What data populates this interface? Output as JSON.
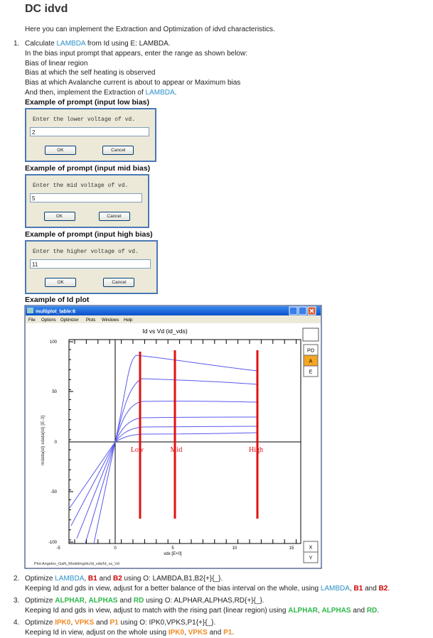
{
  "header": {
    "title": "DC idvd",
    "intro": "Here you can implement the Extraction and Optimization of idvd characteristics."
  },
  "steps": [
    {
      "number": "1.",
      "lines": [
        [
          {
            "text": "Calculate "
          },
          {
            "text": "LAMBDA",
            "color": "#2a90c8"
          },
          {
            "text": " from Id using E: LAMBDA."
          }
        ],
        [
          {
            "text": "In the bias input prompt that appears, enter the range as shown below:"
          }
        ],
        [
          {
            "text": "Bias of linear region"
          }
        ],
        [
          {
            "text": "Bias at which the self heating is observed"
          }
        ],
        [
          {
            "text": "Bias at which Avalanche current is about to appear or Maximum bias"
          }
        ],
        [
          {
            "text": "And then, implement the Extraction of "
          },
          {
            "text": "LAMBDA",
            "color": "#2a90c8"
          },
          {
            "text": "."
          }
        ]
      ]
    },
    {
      "number": "2.",
      "lines": [
        [
          {
            "text": "Optimize "
          },
          {
            "text": "LAMBDA",
            "color": "#2a90c8"
          },
          {
            "text": ", "
          },
          {
            "text": "B1",
            "color": "#cc0000",
            "bold": true
          },
          {
            "text": " and "
          },
          {
            "text": "B2",
            "color": "#cc0000",
            "bold": true
          },
          {
            "text": " using O: LAMBDA,B1,B2{+}{_}."
          }
        ],
        [
          {
            "text": "Keeping Id and gds in view, adjust for a better balance of the bias interval on the whole, using "
          },
          {
            "text": "LAMBDA",
            "color": "#2a90c8"
          },
          {
            "text": ", "
          },
          {
            "text": "B1",
            "color": "#cc0000",
            "bold": true
          },
          {
            "text": " and "
          },
          {
            "text": "B2",
            "color": "#cc0000",
            "bold": true
          },
          {
            "text": "."
          }
        ]
      ]
    },
    {
      "number": "3.",
      "lines": [
        [
          {
            "text": "Optimize "
          },
          {
            "text": "ALPHAR",
            "color": "#2db84a",
            "bold": true
          },
          {
            "text": ", "
          },
          {
            "text": "ALPHAS",
            "color": "#2db84a",
            "bold": true
          },
          {
            "text": " and "
          },
          {
            "text": "RD",
            "color": "#2db84a",
            "bold": true
          },
          {
            "text": " using O: ALPHAR,ALPHAS,RD{+}{_}."
          }
        ],
        [
          {
            "text": "Keeping Id and gds in view, adjust to match with the rising part (linear region) using "
          },
          {
            "text": "ALPHAR",
            "color": "#2db84a",
            "bold": true
          },
          {
            "text": ", "
          },
          {
            "text": "ALPHAS",
            "color": "#2db84a",
            "bold": true
          },
          {
            "text": " and "
          },
          {
            "text": "RD",
            "color": "#2db84a",
            "bold": true
          },
          {
            "text": "."
          }
        ]
      ]
    },
    {
      "number": "4.",
      "lines": [
        [
          {
            "text": "Optimize "
          },
          {
            "text": "IPK0",
            "color": "#f08a24",
            "bold": true
          },
          {
            "text": ", "
          },
          {
            "text": "VPKS",
            "color": "#f08a24",
            "bold": true
          },
          {
            "text": " and "
          },
          {
            "text": "P1",
            "color": "#f08a24",
            "bold": true
          },
          {
            "text": " using O: IPK0,VPKS,P1{+}{_}."
          }
        ],
        [
          {
            "text": "Keeping Id in view, adjust on the whole using "
          },
          {
            "text": "IPK0",
            "color": "#f08a24",
            "bold": true
          },
          {
            "text": ", "
          },
          {
            "text": "VPKS",
            "color": "#f08a24",
            "bold": true
          },
          {
            "text": " and "
          },
          {
            "text": "P1",
            "color": "#f08a24",
            "bold": true
          },
          {
            "text": "."
          }
        ]
      ]
    }
  ],
  "dialogs": [
    {
      "heading": "Example of prompt (input low bias)",
      "prompt": "Enter the lower voltage of vd.",
      "value": "2",
      "ok": "OK",
      "cancel": "Cancel"
    },
    {
      "heading": "Example of prompt (input mid bias)",
      "prompt": "Enter the mid voltage of vd.",
      "value": "5",
      "ok": "OK",
      "cancel": "Cancel"
    },
    {
      "heading": "Example of prompt (input high bias)",
      "prompt": "Enter the higher voltage of vd.",
      "value": "11",
      "ok": "OK",
      "cancel": "Cancel"
    }
  ],
  "plot": {
    "heading": "Example of Id plot",
    "window_title": "multiplot_table:6",
    "menu": [
      "File",
      "Options",
      "Optimizer",
      "Plots",
      "Windows",
      "Help"
    ],
    "title": "Id vs Vd (id_vds)",
    "yticks": [
      "100",
      "50",
      "0",
      "-50",
      "-100"
    ],
    "xticks": [
      "-5",
      "0",
      "5",
      "10",
      "15"
    ],
    "xlabel": "vdx [E+0]",
    "ylabel": "mdata(id) sdata(id) [E-3]",
    "markers": [
      "Low",
      "Mid",
      "High"
    ],
    "side_top": [
      "PO",
      "A",
      "E"
    ],
    "side_bottom": [
      "X",
      "Y"
    ],
    "footer": "Plot:Angelov_GaN_Modeling/dc/id_vds/Id_vs_Vd"
  }
}
